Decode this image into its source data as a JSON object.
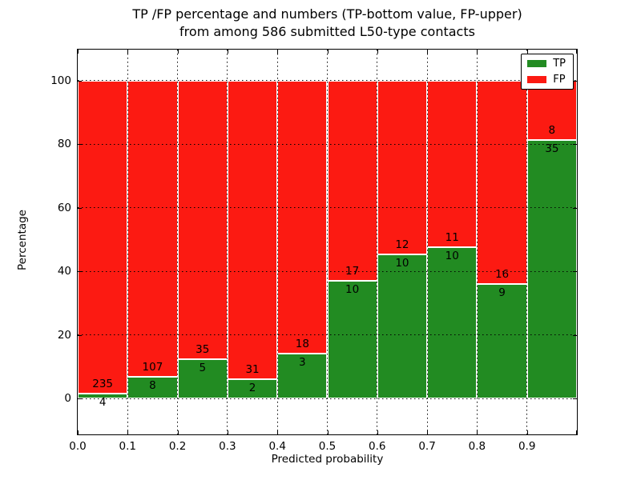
{
  "figure": {
    "title_line1": "TP /FP percentage and numbers (TP-bottom value, FP-upper)",
    "title_line2": "from among 586 submitted L50-type contacts",
    "xlabel": "Predicted probability",
    "ylabel": "Percentage"
  },
  "legend": {
    "position": "upper-right",
    "items": [
      {
        "label": "TP",
        "color": "#228b22"
      },
      {
        "label": "FP",
        "color": "#fc1a12"
      }
    ]
  },
  "chart_data": {
    "type": "bar",
    "stacked": true,
    "units": "percent of bin total, annotated with raw counts",
    "title": "TP /FP percentage and numbers (TP-bottom value, FP-upper) from among 586 submitted L50-type contacts",
    "xlabel": "Predicted probability",
    "ylabel": "Percentage",
    "total_contacts": 586,
    "bin_edges": [
      0.0,
      0.1,
      0.2,
      0.3,
      0.4,
      0.5,
      0.6,
      0.7,
      0.8,
      0.9,
      1.0
    ],
    "x_tick_labels": [
      "0.0",
      "0.1",
      "0.2",
      "0.3",
      "0.4",
      "0.5",
      "0.6",
      "0.7",
      "0.8",
      "0.9"
    ],
    "y_tick_values": [
      0,
      20,
      40,
      60,
      80,
      100
    ],
    "xlim": [
      0.0,
      1.0
    ],
    "ylim": [
      -11.2,
      109.8
    ],
    "grid": "dotted black, both axes, drawn over bars",
    "legend_position": "upper right",
    "series": [
      {
        "name": "TP",
        "color": "#228b22",
        "counts": [
          4,
          8,
          5,
          2,
          3,
          10,
          10,
          10,
          9,
          35
        ],
        "percent": [
          1.67,
          6.96,
          12.5,
          6.06,
          14.29,
          37.04,
          45.45,
          47.62,
          36.0,
          81.4
        ]
      },
      {
        "name": "FP",
        "color": "#fc1a12",
        "counts": [
          235,
          107,
          35,
          31,
          18,
          17,
          12,
          11,
          16,
          8
        ],
        "percent": [
          98.33,
          93.04,
          87.5,
          93.94,
          85.71,
          62.96,
          54.55,
          52.38,
          64.0,
          18.6
        ]
      }
    ]
  }
}
